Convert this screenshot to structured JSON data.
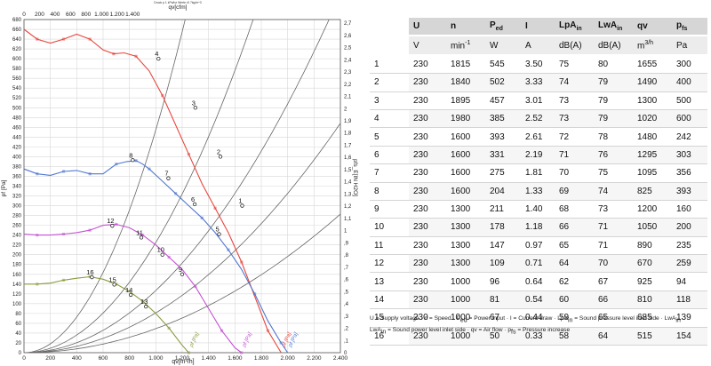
{
  "chart_data": {
    "type": "line",
    "top_header": "Druck p 1 kPa/hz Werte r0 7kg/m^3",
    "x_label_bottom": "qv[m³/h]",
    "x_label_top": "qv[cfm]",
    "y_label_left": "pf [Pa]",
    "y_label_right": "pfs_E[IN H2O]",
    "xlim": [
      0,
      2400
    ],
    "ylim": [
      0,
      680
    ],
    "top_xlim": [
      0,
      1400
    ],
    "right_ylim": [
      0,
      2.7
    ],
    "x_ticks": [
      "0",
      "200",
      "400",
      "600",
      "800",
      "1.000",
      "1.200",
      "1.400",
      "1.600",
      "1.800",
      "2.000",
      "2.200",
      "2.400"
    ],
    "top_ticks": [
      "0",
      "200",
      "400",
      "600",
      "800",
      "1.000",
      "1.200",
      "1.400"
    ],
    "y_ticks": [
      "0",
      "20",
      "40",
      "60",
      "80",
      "100",
      "120",
      "140",
      "160",
      "180",
      "200",
      "220",
      "240",
      "260",
      "280",
      "300",
      "320",
      "340",
      "360",
      "380",
      "400",
      "420",
      "440",
      "460",
      "480",
      "500",
      "520",
      "540",
      "560",
      "580",
      "600",
      "620",
      "640",
      "660",
      "680"
    ],
    "right_ticks": [
      "0",
      ",1",
      ",2",
      ",3",
      ",4",
      ",5",
      ",6",
      ",7",
      ",8",
      ",9",
      "1",
      "1,1",
      "1,2",
      "1,3",
      "1,4",
      "1,5",
      "1,6",
      "1,7",
      "1,8",
      "1,9",
      "2",
      "2,1",
      "2,2",
      "2,3",
      "2,4",
      "2,5",
      "2,6",
      "2,7"
    ],
    "series": [
      {
        "name": "pf [Pa]",
        "color": "#e8473e",
        "x": [
          0,
          100,
          200,
          300,
          400,
          500,
          600,
          680,
          760,
          850,
          950,
          1050,
          1150,
          1250,
          1350,
          1450,
          1550,
          1650,
          1750,
          1850,
          1950
        ],
        "y": [
          660,
          640,
          632,
          640,
          650,
          640,
          618,
          610,
          612,
          605,
          575,
          525,
          465,
          405,
          345,
          295,
          245,
          185,
          115,
          45,
          0
        ]
      },
      {
        "name": "pf [Pa]",
        "color": "#4f77d1",
        "x": [
          0,
          100,
          200,
          300,
          400,
          500,
          600,
          700,
          780,
          850,
          900,
          950,
          1050,
          1150,
          1250,
          1350,
          1450,
          1550,
          1650,
          1750,
          1850,
          1950,
          2000
        ],
        "y": [
          375,
          365,
          362,
          370,
          372,
          365,
          365,
          385,
          390,
          392,
          385,
          375,
          350,
          325,
          300,
          275,
          245,
          210,
          170,
          120,
          65,
          20,
          0
        ]
      },
      {
        "name": "pf [Pa]",
        "color": "#c452d2",
        "x": [
          0,
          100,
          200,
          300,
          400,
          500,
          600,
          700,
          800,
          900,
          1000,
          1100,
          1200,
          1300,
          1400,
          1500,
          1600,
          1650
        ],
        "y": [
          242,
          240,
          240,
          242,
          245,
          250,
          260,
          262,
          255,
          240,
          220,
          195,
          170,
          135,
          90,
          45,
          10,
          0
        ]
      },
      {
        "name": "pf [Pa]",
        "color": "#8c9a40",
        "x": [
          0,
          100,
          200,
          300,
          400,
          500,
          600,
          700,
          800,
          900,
          1000,
          1100,
          1200,
          1250
        ],
        "y": [
          140,
          140,
          142,
          148,
          152,
          155,
          150,
          140,
          125,
          105,
          80,
          50,
          15,
          0
        ]
      }
    ],
    "system_curves_k": [
      0.000455,
      0.000225,
      0.000127,
      8.13e-05,
      4.91e-05
    ],
    "curve_labels": [
      "pf [Pa]",
      "pf [Pa]",
      "pf [Pa]",
      "pf [Pa]"
    ],
    "operating_points": [
      {
        "label": "1",
        "x": 1655,
        "y": 300
      },
      {
        "label": "2",
        "x": 1490,
        "y": 400
      },
      {
        "label": "3",
        "x": 1300,
        "y": 500
      },
      {
        "label": "4",
        "x": 1020,
        "y": 600
      },
      {
        "label": "5",
        "x": 1480,
        "y": 242
      },
      {
        "label": "6",
        "x": 1295,
        "y": 303
      },
      {
        "label": "7",
        "x": 1095,
        "y": 356
      },
      {
        "label": "8",
        "x": 825,
        "y": 393
      },
      {
        "label": "9",
        "x": 1200,
        "y": 160
      },
      {
        "label": "10",
        "x": 1050,
        "y": 200
      },
      {
        "label": "11",
        "x": 890,
        "y": 235
      },
      {
        "label": "12",
        "x": 670,
        "y": 259
      },
      {
        "label": "13",
        "x": 925,
        "y": 94
      },
      {
        "label": "14",
        "x": 810,
        "y": 118
      },
      {
        "label": "15",
        "x": 685,
        "y": 139
      },
      {
        "label": "16",
        "x": 515,
        "y": 154
      }
    ]
  },
  "table": {
    "headers": [
      {
        "main": "",
        "sub": ""
      },
      {
        "main": "U",
        "sub": ""
      },
      {
        "main": "n",
        "sub": ""
      },
      {
        "main": "P",
        "sub": "ed"
      },
      {
        "main": "I",
        "sub": ""
      },
      {
        "main": "LpA",
        "sub": "in"
      },
      {
        "main": "LwA",
        "sub": "in"
      },
      {
        "main": "qv",
        "sub": ""
      },
      {
        "main": "p",
        "sub": "fs"
      }
    ],
    "units": [
      {
        "main": "",
        "sup": ""
      },
      {
        "main": "V",
        "sup": ""
      },
      {
        "main": "min",
        "sup": "-1"
      },
      {
        "main": "W",
        "sup": ""
      },
      {
        "main": "A",
        "sup": ""
      },
      {
        "main": "dB(A)",
        "sup": ""
      },
      {
        "main": "dB(A)",
        "sup": ""
      },
      {
        "main": "m",
        "sup": "3/h"
      },
      {
        "main": "Pa",
        "sup": ""
      }
    ],
    "rows": [
      [
        "1",
        "230",
        "1815",
        "545",
        "3.50",
        "75",
        "80",
        "1655",
        "300"
      ],
      [
        "2",
        "230",
        "1840",
        "502",
        "3.33",
        "74",
        "79",
        "1490",
        "400"
      ],
      [
        "3",
        "230",
        "1895",
        "457",
        "3.01",
        "73",
        "79",
        "1300",
        "500"
      ],
      [
        "4",
        "230",
        "1980",
        "385",
        "2.52",
        "73",
        "79",
        "1020",
        "600"
      ],
      [
        "5",
        "230",
        "1600",
        "393",
        "2.61",
        "72",
        "78",
        "1480",
        "242"
      ],
      [
        "6",
        "230",
        "1600",
        "331",
        "2.19",
        "71",
        "76",
        "1295",
        "303"
      ],
      [
        "7",
        "230",
        "1600",
        "275",
        "1.81",
        "70",
        "75",
        "1095",
        "356"
      ],
      [
        "8",
        "230",
        "1600",
        "204",
        "1.33",
        "69",
        "74",
        "825",
        "393"
      ],
      [
        "9",
        "230",
        "1300",
        "211",
        "1.40",
        "68",
        "73",
        "1200",
        "160"
      ],
      [
        "10",
        "230",
        "1300",
        "178",
        "1.18",
        "66",
        "71",
        "1050",
        "200"
      ],
      [
        "11",
        "230",
        "1300",
        "147",
        "0.97",
        "65",
        "71",
        "890",
        "235"
      ],
      [
        "12",
        "230",
        "1300",
        "109",
        "0.71",
        "64",
        "70",
        "670",
        "259"
      ],
      [
        "13",
        "230",
        "1000",
        "96",
        "0.64",
        "62",
        "67",
        "925",
        "94"
      ],
      [
        "14",
        "230",
        "1000",
        "81",
        "0.54",
        "60",
        "66",
        "810",
        "118"
      ],
      [
        "15",
        "230",
        "1000",
        "67",
        "0.44",
        "59",
        "65",
        "685",
        "139"
      ],
      [
        "16",
        "230",
        "1000",
        "50",
        "0.33",
        "58",
        "64",
        "515",
        "154"
      ]
    ]
  },
  "legend": {
    "parts": [
      {
        "t": "U = Supply voltage · n = Speed · P"
      },
      {
        "s": "ed"
      },
      {
        "t": " = Power input · I = Current draw · LpA"
      },
      {
        "s": "in"
      },
      {
        "t": " = Sound pressure level inlet side · LwA"
      },
      {
        "s": "in"
      },
      {
        "br": true
      },
      {
        "t": "LwA"
      },
      {
        "s": "in"
      },
      {
        "t": " = Sound power level inlet side · qv = Air flow · p"
      },
      {
        "s": "fs"
      },
      {
        "t": " = Pressure increase"
      }
    ]
  }
}
